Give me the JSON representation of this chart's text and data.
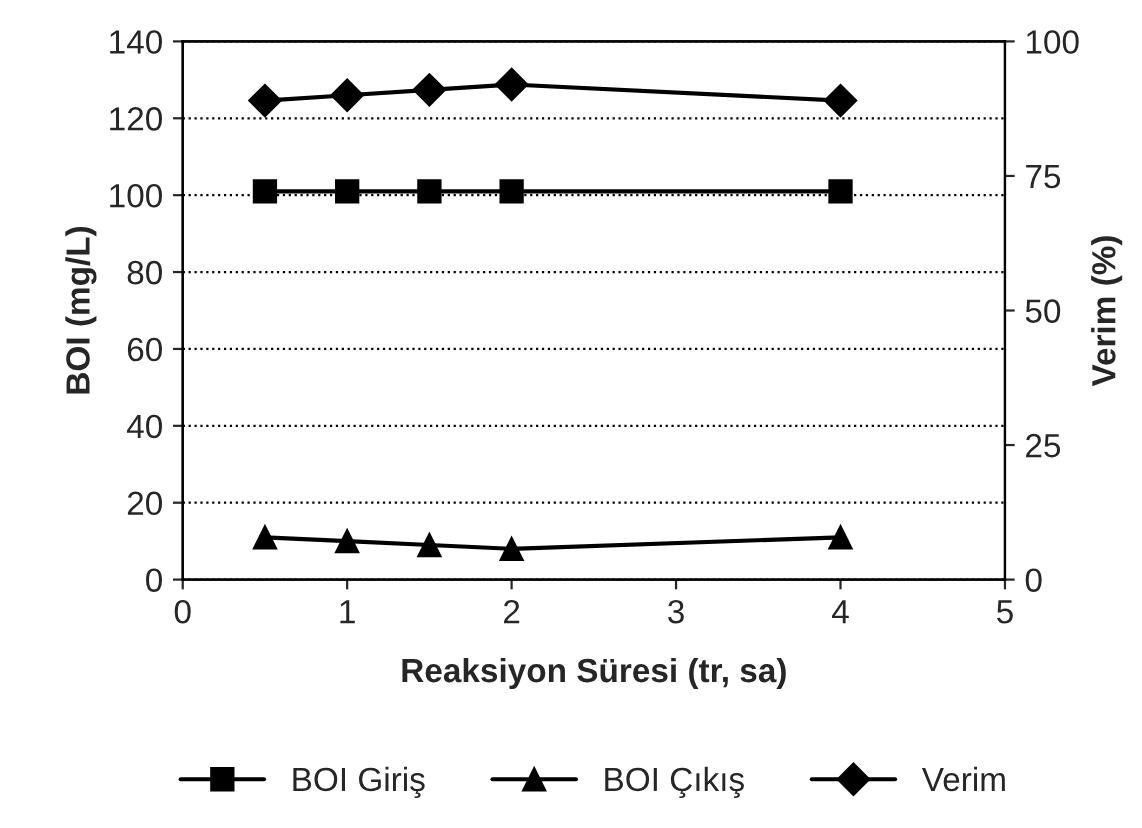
{
  "chart_data": {
    "type": "line",
    "xlabel": "Reaksiyon Süresi (tr, sa)",
    "ylabel": "BOI (mg/L)",
    "y2label": "Verim (%)",
    "x": [
      0.5,
      1,
      1.5,
      2,
      4
    ],
    "series": [
      {
        "name": "BOI Giriş",
        "color": "#000000",
        "marker": "square",
        "values": [
          101,
          101,
          101,
          101,
          101
        ]
      },
      {
        "name": "BOI Çıkış",
        "color": "#000000",
        "marker": "triangle",
        "values": [
          11,
          10,
          9,
          8,
          11
        ]
      },
      {
        "name": "Verim",
        "color": "#000000",
        "marker": "diamond",
        "axis": "y2",
        "values": [
          89,
          90,
          91,
          92,
          89
        ]
      }
    ],
    "xlim": [
      0,
      5
    ],
    "xticks": [
      0,
      1,
      2,
      3,
      4,
      5
    ],
    "ylim": [
      0,
      140
    ],
    "yticks": [
      0,
      20,
      40,
      60,
      80,
      100,
      120,
      140
    ],
    "y2lim": [
      0,
      100
    ],
    "y2ticks": [
      0,
      25,
      50,
      75,
      100
    ],
    "grid": "y",
    "line_style": "solid",
    "legend": "bottom"
  }
}
